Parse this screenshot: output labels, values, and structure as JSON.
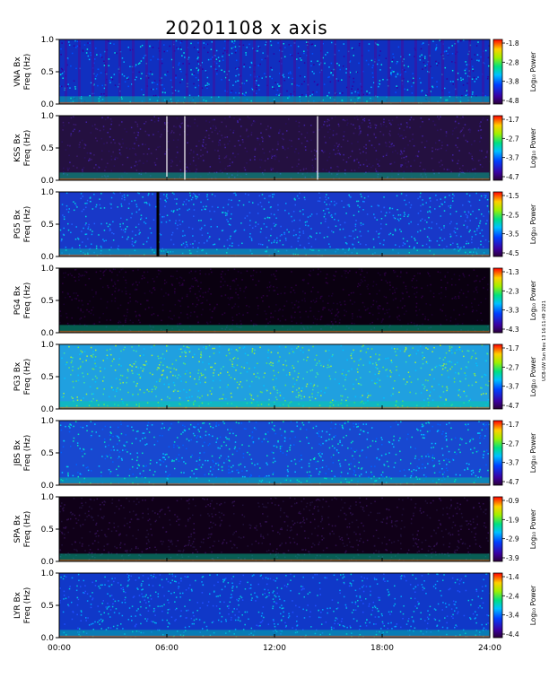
{
  "chart_data": {
    "type": "heatmap",
    "title": "20201108 x axis",
    "x_ticks": [
      "00:00",
      "06:00",
      "12:00",
      "18:00",
      "24:00"
    ],
    "x_range_hours": [
      0,
      24
    ],
    "y_ticks": [
      "0.0",
      "0.5",
      "1.0"
    ],
    "freq_range_hz": [
      0.0,
      1.0
    ],
    "colorbar_label": "Log₁₀ Power",
    "side_note": "UCB-UW Sun Nov 13 16:11:49 2021",
    "panels": [
      {
        "ylabel1": "VNA Bx",
        "ylabel2": "Freq (Hz)",
        "colorbar_ticks": [
          "-1.8",
          "-2.8",
          "-3.8",
          "-4.8"
        ],
        "dark_hours": [],
        "white_lines": [],
        "black_lines": []
      },
      {
        "ylabel1": "KSS Bx",
        "ylabel2": "Freq (Hz)",
        "colorbar_ticks": [
          "-1.7",
          "-2.7",
          "-3.7",
          "-4.7"
        ],
        "dark_hours": [],
        "white_lines": [
          6.0,
          7.0,
          14.4
        ],
        "black_lines": []
      },
      {
        "ylabel1": "PG5 Bx",
        "ylabel2": "Freq (Hz)",
        "colorbar_ticks": [
          "-1.5",
          "-2.5",
          "-3.5",
          "-4.5"
        ],
        "dark_hours": [],
        "white_lines": [],
        "black_lines": [
          5.5
        ]
      },
      {
        "ylabel1": "PG4 Bx",
        "ylabel2": "Freq (Hz)",
        "colorbar_ticks": [
          "-1.3",
          "-2.3",
          "-3.3",
          "-4.3"
        ],
        "dark_hours": [],
        "white_lines": [],
        "black_lines": []
      },
      {
        "ylabel1": "PG3 Bx",
        "ylabel2": "Freq (Hz)",
        "colorbar_ticks": [
          "-1.7",
          "-2.7",
          "-3.7",
          "-4.7"
        ],
        "dark_hours": [],
        "white_lines": [],
        "black_lines": []
      },
      {
        "ylabel1": "JBS Bx",
        "ylabel2": "Freq (Hz)",
        "colorbar_ticks": [
          "-1.7",
          "-2.7",
          "-3.7",
          "-4.7"
        ],
        "dark_hours": [],
        "white_lines": [],
        "black_lines": []
      },
      {
        "ylabel1": "SPA Bx",
        "ylabel2": "Freq (Hz)",
        "colorbar_ticks": [
          "-0.9",
          "-1.9",
          "-2.9",
          "-3.9"
        ],
        "dark_hours": [],
        "white_lines": [],
        "black_lines": []
      },
      {
        "ylabel1": "LYR Bx",
        "ylabel2": "Freq (Hz)",
        "colorbar_ticks": [
          "-1.4",
          "-2.4",
          "-3.4",
          "-4.4"
        ],
        "dark_hours": [],
        "white_lines": [],
        "black_lines": []
      }
    ]
  }
}
